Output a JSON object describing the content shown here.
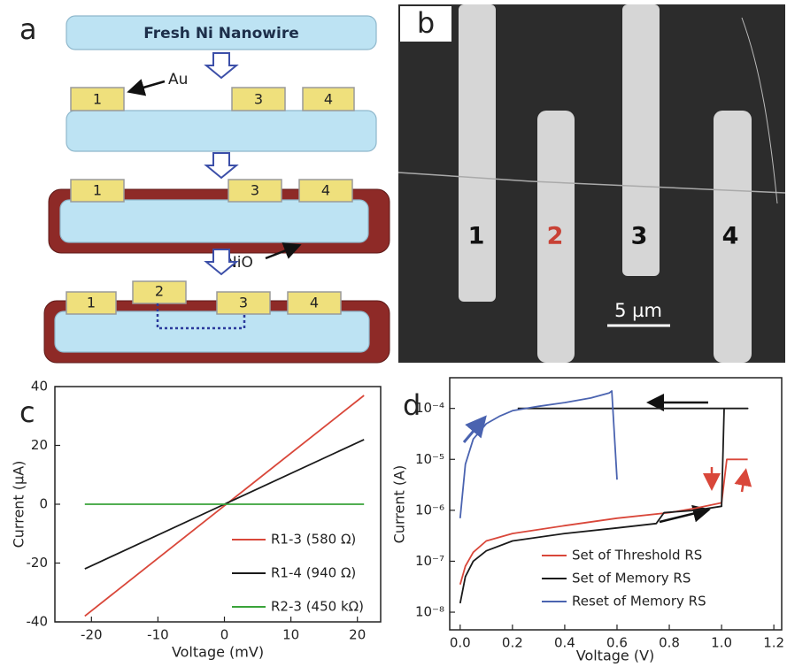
{
  "diagram": {
    "label": "a",
    "wire_label": "Fresh Ni Nanowire",
    "stage2": {
      "pads": [
        "1",
        "3",
        "4"
      ],
      "callout": "Au"
    },
    "stage3": {
      "pads": [
        "1",
        "3",
        "4"
      ],
      "callout": "NiO"
    },
    "stage4": {
      "pads": [
        "1",
        "2",
        "3",
        "4"
      ]
    }
  },
  "micrograph": {
    "label": "b",
    "electrodes": [
      "1",
      "2",
      "3",
      "4"
    ],
    "scale_bar": "5 µm"
  },
  "chart_data": [
    {
      "type": "line",
      "panel_label": "c",
      "x_label": "Voltage (mV)",
      "y_label": "Current (µA)",
      "x": [
        -21,
        21
      ],
      "series": [
        {
          "name": "R1-3 (580 Ω)",
          "color": "#d9473a",
          "values": [
            -38,
            37
          ]
        },
        {
          "name": "R1-4 (940 Ω)",
          "color": "#1a1a1a",
          "values": [
            -22,
            22
          ]
        },
        {
          "name": "R2-3 (450 kΩ)",
          "color": "#3aa33a",
          "values": [
            0,
            0
          ]
        }
      ],
      "xlim": [
        -25.5,
        23.5
      ],
      "ylim": [
        -40,
        40
      ],
      "xticks": [
        -20,
        -10,
        0,
        10,
        20
      ],
      "yticks": [
        -40,
        -20,
        0,
        20,
        40
      ],
      "legend": "lower right",
      "log_y": false
    },
    {
      "type": "line",
      "panel_label": "d",
      "x_label": "Voltage (V)",
      "y_label": "Current (A)",
      "series": [
        {
          "name": "Set of Threshold RS",
          "color": "#d9473a",
          "x": [
            0,
            0.02,
            0.05,
            0.1,
            0.2,
            0.4,
            0.6,
            0.8,
            0.9,
            1.0,
            1.02,
            1.1
          ],
          "values": [
            3.5e-08,
            8e-08,
            1.5e-07,
            2.5e-07,
            3.5e-07,
            5e-07,
            7e-07,
            9e-07,
            1.1e-06,
            1.4e-06,
            1e-05,
            1e-05
          ]
        },
        {
          "name": "Set of Memory RS",
          "color": "#1a1a1a",
          "x": [
            0,
            0.02,
            0.05,
            0.1,
            0.2,
            0.4,
            0.6,
            0.75,
            0.78,
            0.9,
            1.0,
            1.01,
            1.1,
            0.22
          ],
          "values": [
            1.5e-08,
            5e-08,
            1e-07,
            1.6e-07,
            2.5e-07,
            3.5e-07,
            4.5e-07,
            5.5e-07,
            9e-07,
            1e-06,
            1.2e-06,
            0.0001,
            0.0001,
            0.0001
          ]
        },
        {
          "name": "Reset of Memory RS",
          "color": "#4a63b0",
          "x": [
            0,
            0.02,
            0.05,
            0.1,
            0.15,
            0.2,
            0.3,
            0.4,
            0.5,
            0.57,
            0.58,
            0.6
          ],
          "values": [
            7e-07,
            8e-06,
            2.5e-05,
            5e-05,
            7e-05,
            9e-05,
            0.00011,
            0.00013,
            0.00016,
            0.0002,
            0.00022,
            4e-06
          ]
        }
      ],
      "xlim": [
        -0.04,
        1.23
      ],
      "ylim": [
        4.5e-09,
        0.0004
      ],
      "xticks": [
        {
          "value": 0,
          "label": "0.0"
        },
        0.2,
        0.4,
        0.6,
        0.8,
        {
          "value": 1,
          "label": "1.0"
        },
        1.2
      ],
      "yticks": [
        {
          "value": 1e-08,
          "label": "10⁻⁸"
        },
        {
          "value": 1e-07,
          "label": "10⁻⁷"
        },
        {
          "value": 1e-06,
          "label": "10⁻⁶"
        },
        {
          "value": 1e-05,
          "label": "10⁻⁵"
        },
        {
          "value": 0.0001,
          "label": "10⁻⁴"
        }
      ],
      "legend": "lower right",
      "log_y": true
    }
  ]
}
